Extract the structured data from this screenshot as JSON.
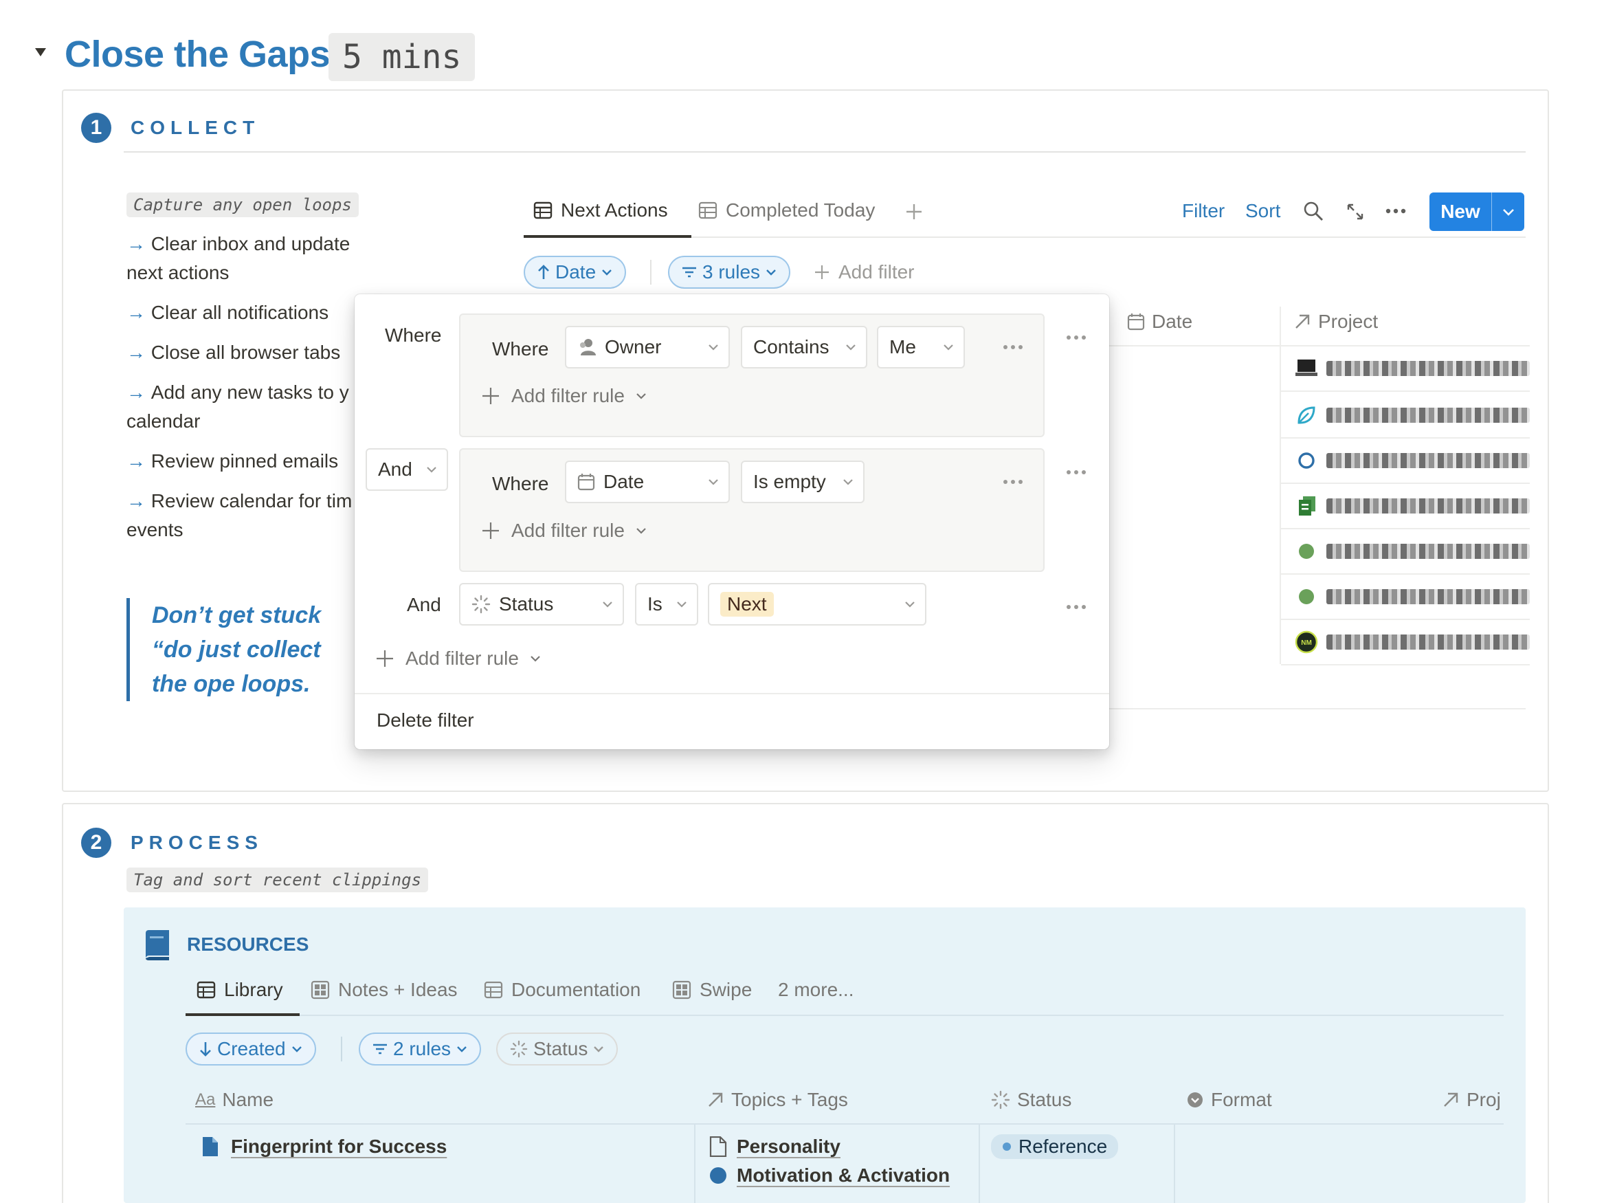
{
  "heading": {
    "title": "Close the Gaps",
    "duration": "5 mins"
  },
  "collect": {
    "number": "1",
    "title": "COLLECT",
    "subtitle": "Capture any open loops",
    "items": [
      "Clear inbox and update next actions",
      "Clear all notifications",
      "Close all browser tabs",
      "Add any new tasks to y calendar",
      "Review pinned emails",
      "Review calendar for tim events"
    ],
    "quote": "Don’t get stuck “do just collect the ope loops."
  },
  "database": {
    "tabs": [
      "Next Actions",
      "Completed Today"
    ],
    "toolbar": {
      "filter": "Filter",
      "sort": "Sort",
      "new": "New"
    },
    "sort_pill": "Date",
    "rules_pill": "3 rules",
    "add_filter": "Add filter",
    "columns": [
      "Date",
      "Project"
    ],
    "project_icons": [
      "laptop-icon",
      "leaf-icon",
      "circle-outline-icon",
      "documents-icon",
      "green-dot-icon",
      "green-dot-icon",
      "nm-logo-icon"
    ]
  },
  "filter_popup": {
    "where": "Where",
    "group1": {
      "where": "Where",
      "property": "Owner",
      "operator": "Contains",
      "value": "Me",
      "add_rule": "Add filter rule"
    },
    "and1": "And",
    "group2": {
      "where": "Where",
      "property": "Date",
      "operator": "Is empty",
      "add_rule": "Add filter rule"
    },
    "rule3": {
      "conjunction": "And",
      "property": "Status",
      "operator": "Is",
      "value": "Next"
    },
    "add_rule": "Add filter rule",
    "delete": "Delete filter"
  },
  "process": {
    "number": "2",
    "title": "PROCESS",
    "subtitle": "Tag and sort recent clippings"
  },
  "resources": {
    "title": "RESOURCES",
    "tabs": [
      "Library",
      "Notes + Ideas",
      "Documentation",
      "Swipe"
    ],
    "more": "2 more...",
    "sort_pill": "Created",
    "rules_pill": "2 rules",
    "status_pill": "Status",
    "columns": [
      "Name",
      "Topics + Tags",
      "Status",
      "Format",
      "Proj"
    ],
    "row": {
      "name": "Fingerprint for Success",
      "tags": [
        "Personality",
        "Motivation & Activation"
      ],
      "status": "Reference"
    }
  },
  "colors": {
    "accent": "#2e7ab8",
    "new_button": "#2383e2",
    "next_badge": "#fbecc8",
    "resources_bg": "#e7f3f8"
  }
}
